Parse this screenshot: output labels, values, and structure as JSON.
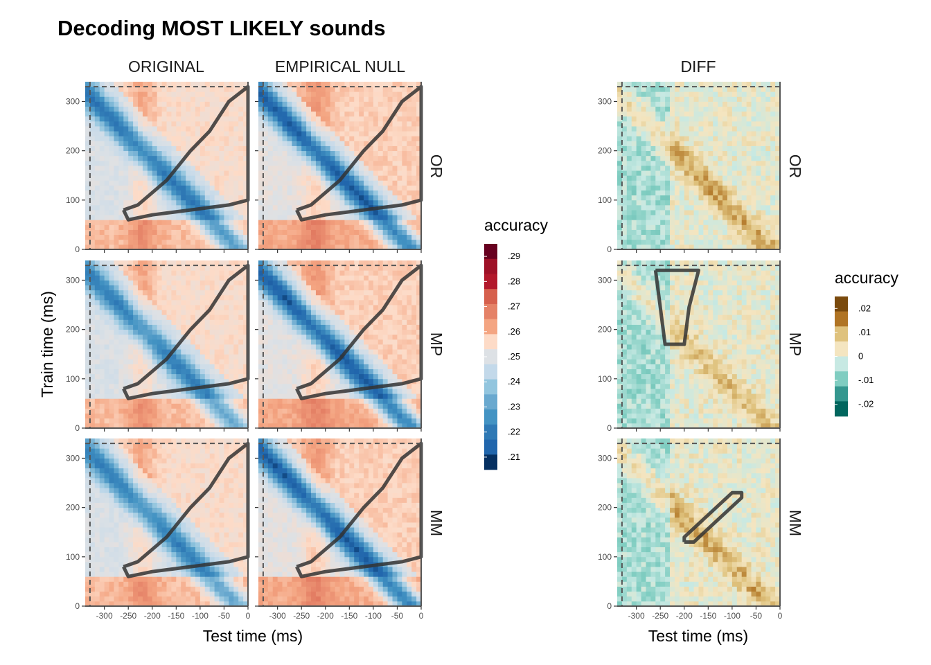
{
  "chart_data": {
    "type": "heatmap",
    "title": "Decoding MOST LIKELY sounds",
    "xlabel": "Test time (ms)",
    "ylabel": "Train time (ms)",
    "xlim": [
      -340,
      0
    ],
    "ylim": [
      0,
      340
    ],
    "x_ticks": [
      -300,
      -250,
      -200,
      -150,
      -100,
      -50,
      0
    ],
    "x_tick_labels": [
      "-300",
      "-250",
      "-200",
      "-150",
      "-100",
      "-50",
      "0"
    ],
    "y_ticks": [
      0,
      100,
      200,
      300
    ],
    "y_tick_labels": [
      "0",
      "100",
      "200",
      "300"
    ],
    "reference_line_train_ms": 330,
    "reference_line_test_ms": -330,
    "columns": [
      "ORIGINAL",
      "EMPIRICAL NULL",
      "DIFF"
    ],
    "rows": [
      "OR",
      "MP",
      "MM"
    ],
    "legends": [
      {
        "title": "accuracy",
        "applies_to": [
          "ORIGINAL",
          "EMPIRICAL NULL"
        ],
        "labels": [
          ".29",
          ".28",
          ".27",
          ".26",
          ".25",
          ".24",
          ".23",
          ".22",
          ".21"
        ],
        "values": [
          0.29,
          0.28,
          0.27,
          0.26,
          0.25,
          0.24,
          0.23,
          0.22,
          0.21
        ],
        "colors": [
          "#67001f",
          "#9e1127",
          "#b2182b",
          "#d6604d",
          "#e58267",
          "#f4a582",
          "#fddbc7",
          "#dde1e5",
          "#c3d9ea",
          "#92c5de",
          "#6aa9cf",
          "#4393c3",
          "#2f79b5",
          "#2166ac",
          "#053061"
        ]
      },
      {
        "title": "accuracy",
        "applies_to": [
          "DIFF"
        ],
        "labels": [
          ".02",
          ".01",
          "0",
          "-.01",
          "-.02"
        ],
        "values": [
          0.02,
          0.01,
          0,
          -0.01,
          -0.02
        ],
        "colors": [
          "#7a4a0d",
          "#b07424",
          "#dfc27d",
          "#f4e5c0",
          "#c7e9e3",
          "#80cdc1",
          "#35978f",
          "#01665e"
        ]
      }
    ],
    "panels": [
      {
        "column": "ORIGINAL",
        "row": "OR",
        "diagonal_accuracy_min": 0.229,
        "off_diagonal_accuracy": 0.255,
        "cluster": "below-diagonal"
      },
      {
        "column": "EMPIRICAL NULL",
        "row": "OR",
        "diagonal_accuracy_min": 0.224,
        "off_diagonal_accuracy": 0.257,
        "cluster": "below-diagonal"
      },
      {
        "column": "DIFF",
        "row": "OR",
        "diagonal_accuracy_max": 0.012,
        "off_diagonal_accuracy": -0.004,
        "cluster": "none"
      },
      {
        "column": "ORIGINAL",
        "row": "MP",
        "diagonal_accuracy_min": 0.231,
        "off_diagonal_accuracy": 0.255,
        "cluster": "below-diagonal"
      },
      {
        "column": "EMPIRICAL NULL",
        "row": "MP",
        "diagonal_accuracy_min": 0.224,
        "off_diagonal_accuracy": 0.257,
        "cluster": "below-diagonal"
      },
      {
        "column": "DIFF",
        "row": "MP",
        "diagonal_accuracy_max": 0.009,
        "off_diagonal_accuracy": -0.004,
        "cluster": "negative",
        "cluster_test_range": [
          -260,
          -190
        ],
        "cluster_train_range": [
          170,
          320
        ]
      },
      {
        "column": "ORIGINAL",
        "row": "MM",
        "diagonal_accuracy_min": 0.231,
        "off_diagonal_accuracy": 0.255,
        "cluster": "below-diagonal"
      },
      {
        "column": "EMPIRICAL NULL",
        "row": "MM",
        "diagonal_accuracy_min": 0.224,
        "off_diagonal_accuracy": 0.257,
        "cluster": "below-diagonal"
      },
      {
        "column": "DIFF",
        "row": "MM",
        "diagonal_accuracy_max": 0.011,
        "off_diagonal_accuracy": -0.003,
        "cluster": "positive",
        "cluster_test_range": [
          -200,
          -80
        ],
        "cluster_train_range": [
          130,
          230
        ]
      }
    ]
  }
}
